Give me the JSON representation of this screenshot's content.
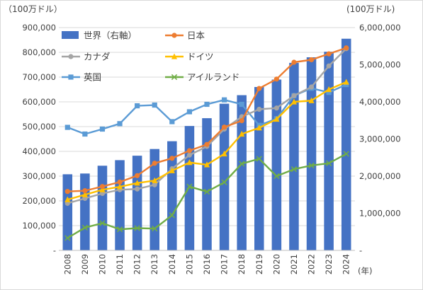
{
  "chart_data": {
    "type": "bar+line",
    "left_axis_unit": "（100万ドル）",
    "right_axis_unit": "(100万ドル)",
    "x_unit": "(年)",
    "categories": [
      "2008",
      "2009",
      "2010",
      "2011",
      "2012",
      "2013",
      "2014",
      "2015",
      "2016",
      "2017",
      "2018",
      "2019",
      "2020",
      "2021",
      "2022",
      "2023",
      "2024"
    ],
    "left_axis": {
      "min": 0,
      "max": 900000,
      "ticks": [
        0,
        100000,
        200000,
        300000,
        400000,
        500000,
        600000,
        700000,
        800000,
        900000
      ],
      "tick_labels": [
        "-",
        "100,000",
        "200,000",
        "300,000",
        "400,000",
        "500,000",
        "600,000",
        "700,000",
        "800,000",
        "900,000"
      ]
    },
    "right_axis": {
      "min": 0,
      "max": 6000000,
      "ticks": [
        0,
        1000000,
        2000000,
        3000000,
        4000000,
        5000000,
        6000000
      ],
      "tick_labels": [
        "-",
        "1,000,000",
        "2,000,000",
        "3,000,000",
        "4,000,000",
        "5,000,000",
        "6,000,000"
      ]
    },
    "grid": "horizontal",
    "legend_position": "top-left inside plot",
    "bar_series": {
      "name": "世界（右軸）",
      "axis": "right",
      "color": "#4472C4",
      "values": [
        2050000,
        2070000,
        2280000,
        2430000,
        2550000,
        2730000,
        2940000,
        3350000,
        3560000,
        3950000,
        4180000,
        4400000,
        4600000,
        5050000,
        5200000,
        5350000,
        5700000
      ]
    },
    "line_series": [
      {
        "name": "日本",
        "axis": "left",
        "color": "#ED7D31",
        "marker": "circle",
        "values": [
          238000,
          241000,
          258000,
          276000,
          302000,
          352000,
          372000,
          403000,
          428000,
          498000,
          524000,
          654000,
          692000,
          760000,
          770000,
          794000,
          818000
        ]
      },
      {
        "name": "カナダ",
        "axis": "left",
        "color": "#A5A5A5",
        "marker": "circle",
        "values": [
          190000,
          210000,
          230000,
          245000,
          248000,
          265000,
          330000,
          385000,
          420000,
          490000,
          540000,
          570000,
          575000,
          625000,
          660000,
          745000,
          815000
        ]
      },
      {
        "name": "ドイツ",
        "axis": "left",
        "color": "#FFC000",
        "marker": "triangle",
        "values": [
          205000,
          225000,
          245000,
          257000,
          272000,
          282000,
          322000,
          355000,
          346000,
          390000,
          470000,
          495000,
          530000,
          600000,
          605000,
          650000,
          680000
        ]
      },
      {
        "name": "英国",
        "axis": "left",
        "color": "#5B9BD5",
        "marker": "square",
        "values": [
          497000,
          470000,
          490000,
          512000,
          584000,
          587000,
          520000,
          560000,
          590000,
          608000,
          590000,
          505000,
          532000,
          625000,
          655000,
          638000,
          670000
        ]
      },
      {
        "name": "アイルランド",
        "axis": "left",
        "color": "#70AD47",
        "marker": "x",
        "values": [
          50000,
          92000,
          110000,
          85000,
          90000,
          88000,
          142000,
          258000,
          237000,
          275000,
          350000,
          370000,
          300000,
          328000,
          343000,
          352000,
          390000
        ]
      }
    ]
  }
}
